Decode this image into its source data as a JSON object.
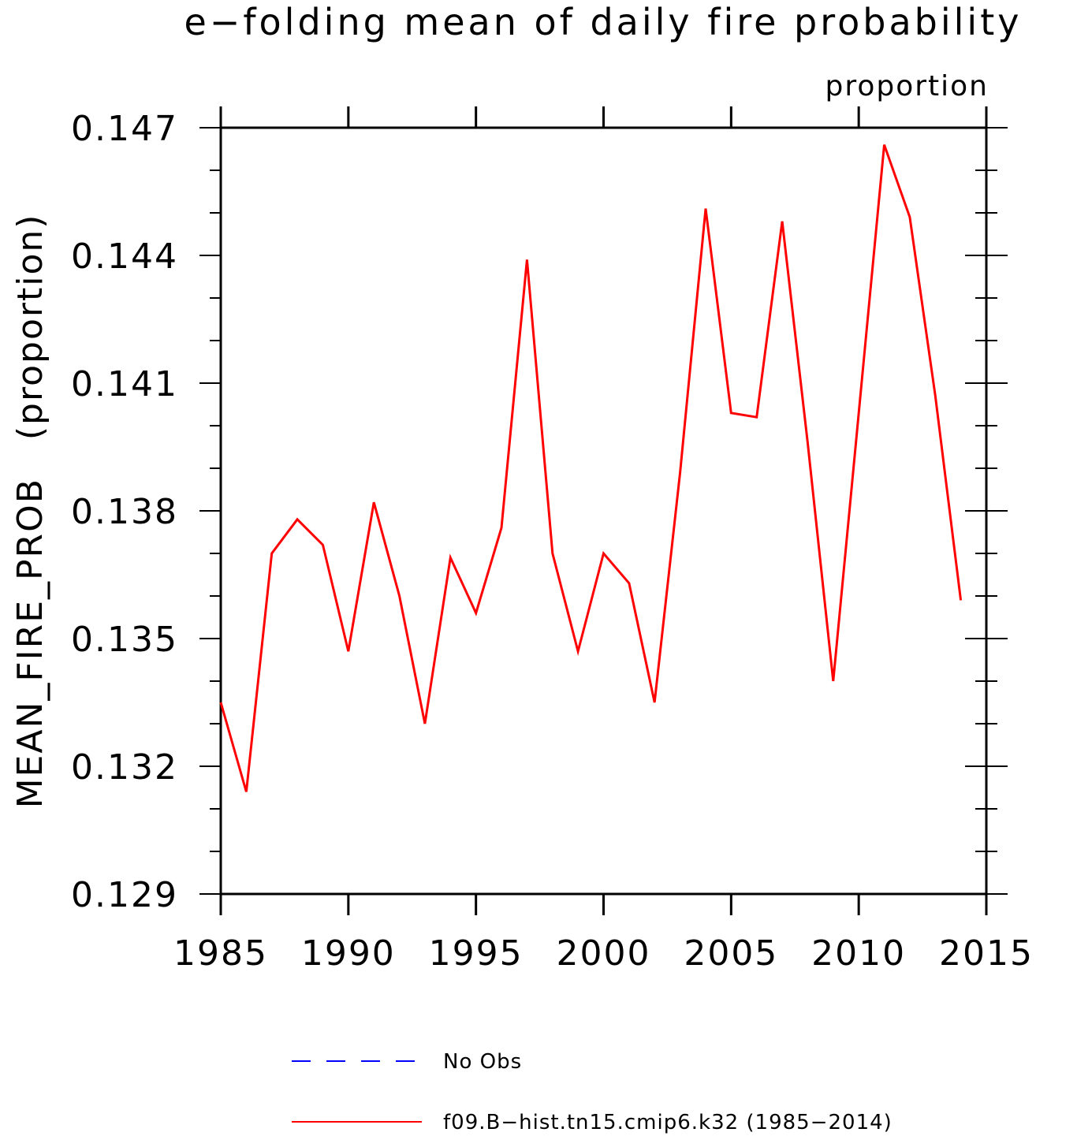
{
  "chart_data": {
    "type": "line",
    "title": "e−folding mean of daily fire probability",
    "units_label": "proportion",
    "ylabel": "MEAN_FIRE_PROB   (proportion)",
    "xlabel": "",
    "xlim": [
      1985,
      2015
    ],
    "ylim": [
      0.129,
      0.147
    ],
    "x_ticks": [
      "1985",
      "1990",
      "1995",
      "2000",
      "2005",
      "2010",
      "2015"
    ],
    "y_ticks": [
      "0.129",
      "0.132",
      "0.135",
      "0.138",
      "0.141",
      "0.144",
      "0.147"
    ],
    "grid": false,
    "legend_position": "bottom",
    "legend": [
      {
        "label": "No Obs",
        "color": "#0000ff",
        "dash": "dashed"
      },
      {
        "label": "f09.B−hist.tn15.cmip6.k32 (1985−2014)",
        "color": "#ff0000",
        "dash": "solid"
      }
    ],
    "series": [
      {
        "name": "f09.B−hist.tn15.cmip6.k32 (1985−2014)",
        "color": "#ff0000",
        "x": [
          1985,
          1986,
          1987,
          1988,
          1989,
          1990,
          1991,
          1992,
          1993,
          1994,
          1995,
          1996,
          1997,
          1998,
          1999,
          2000,
          2001,
          2002,
          2003,
          2004,
          2005,
          2006,
          2007,
          2008,
          2009,
          2010,
          2011,
          2012,
          2013,
          2014
        ],
        "values": [
          0.1335,
          0.1314,
          0.137,
          0.1378,
          0.1372,
          0.1347,
          0.1382,
          0.136,
          0.133,
          0.1369,
          0.1356,
          0.1376,
          0.1439,
          0.137,
          0.1347,
          0.137,
          0.1363,
          0.1335,
          0.1389,
          0.1451,
          0.1403,
          0.1402,
          0.1448,
          0.1396,
          0.134,
          0.1403,
          0.1466,
          0.1449,
          0.1407,
          0.1359
        ]
      }
    ]
  }
}
